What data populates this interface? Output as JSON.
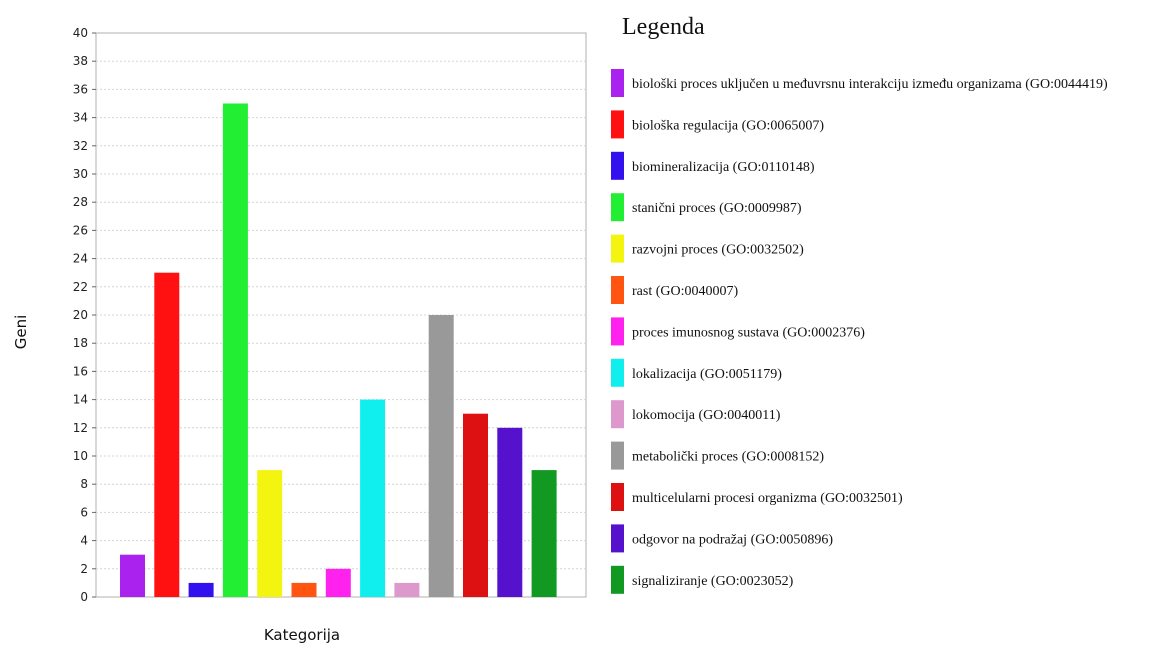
{
  "chart_data": {
    "type": "bar",
    "ylabel": "Geni",
    "xlabel": "Kategorija",
    "ylim": [
      0,
      40
    ],
    "yticks": [
      0,
      2,
      4,
      6,
      8,
      10,
      12,
      14,
      16,
      18,
      20,
      22,
      24,
      26,
      28,
      30,
      32,
      34,
      36,
      38,
      40
    ],
    "grid": true,
    "legend_title": "Legenda",
    "legend_position": "right",
    "categories": [
      {
        "label": "biološki proces uključen u međuvrsnu interakciju između organizama (GO:0044419)",
        "value": 3,
        "color": "#aa22ee"
      },
      {
        "label": "biološka regulacija (GO:0065007)",
        "value": 23,
        "color": "#ff1111"
      },
      {
        "label": "biomineralizacija (GO:0110148)",
        "value": 1,
        "color": "#3311ee"
      },
      {
        "label": "stanični proces (GO:0009987)",
        "value": 35,
        "color": "#22ee33"
      },
      {
        "label": "razvojni proces (GO:0032502)",
        "value": 9,
        "color": "#f4f411"
      },
      {
        "label": "rast (GO:0040007)",
        "value": 1,
        "color": "#ff5511"
      },
      {
        "label": "proces imunosnog sustava (GO:0002376)",
        "value": 2,
        "color": "#ff22ee"
      },
      {
        "label": "lokalizacija (GO:0051179)",
        "value": 14,
        "color": "#11eeee"
      },
      {
        "label": "lokomocija (GO:0040011)",
        "value": 1,
        "color": "#dd99cc"
      },
      {
        "label": "metabolički proces (GO:0008152)",
        "value": 20,
        "color": "#999999"
      },
      {
        "label": "multicelularni procesi organizma (GO:0032501)",
        "value": 13,
        "color": "#dd1111"
      },
      {
        "label": "odgovor na podražaj (GO:0050896)",
        "value": 12,
        "color": "#5511cc"
      },
      {
        "label": "signaliziranje (GO:0023052)",
        "value": 9,
        "color": "#119922"
      }
    ]
  }
}
